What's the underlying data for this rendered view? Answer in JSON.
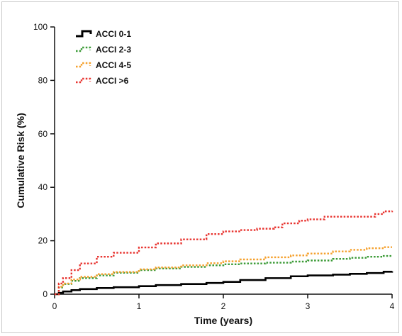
{
  "chart_data": {
    "type": "line",
    "subtype": "step",
    "xlabel": "Time (years)",
    "ylabel": "Cumulative Risk (%)",
    "xlim": [
      0,
      4
    ],
    "ylim": [
      0,
      100
    ],
    "xticks": [
      0,
      1,
      2,
      3,
      4
    ],
    "yticks": [
      0,
      20,
      40,
      60,
      80,
      100
    ],
    "grid": false,
    "legend_position": "top-left",
    "series": [
      {
        "name": "ACCI 0-1",
        "color": "#000000",
        "style": "solid",
        "x": [
          0,
          0.05,
          0.1,
          0.2,
          0.3,
          0.5,
          0.7,
          1.0,
          1.2,
          1.5,
          1.8,
          2.0,
          2.2,
          2.5,
          2.8,
          3.0,
          3.3,
          3.5,
          3.7,
          3.9,
          4.0
        ],
        "y": [
          0,
          0.5,
          1.0,
          1.5,
          1.9,
          2.3,
          2.6,
          3.0,
          3.4,
          3.8,
          4.2,
          4.6,
          5.3,
          6.0,
          6.7,
          7.0,
          7.3,
          7.6,
          7.9,
          8.4,
          8.6
        ]
      },
      {
        "name": "ACCI 2-3",
        "color": "#3a9a35",
        "style": "dotted",
        "x": [
          0,
          0.05,
          0.1,
          0.2,
          0.3,
          0.5,
          0.7,
          1.0,
          1.2,
          1.5,
          1.8,
          2.0,
          2.2,
          2.5,
          2.8,
          3.0,
          3.3,
          3.5,
          3.7,
          3.9,
          4.0
        ],
        "y": [
          0,
          2.5,
          3.8,
          5.0,
          6.0,
          7.0,
          8.0,
          9.0,
          9.6,
          10.2,
          10.8,
          11.2,
          11.5,
          11.8,
          12.2,
          12.6,
          13.2,
          13.6,
          14.0,
          14.3,
          14.3
        ]
      },
      {
        "name": "ACCI 4-5",
        "color": "#f5a02c",
        "style": "dotted",
        "x": [
          0,
          0.05,
          0.1,
          0.2,
          0.3,
          0.5,
          0.7,
          1.0,
          1.2,
          1.5,
          1.8,
          2.0,
          2.2,
          2.5,
          2.8,
          3.0,
          3.3,
          3.5,
          3.7,
          3.9,
          4.0
        ],
        "y": [
          0,
          2.8,
          4.0,
          5.5,
          6.5,
          7.5,
          8.3,
          9.3,
          10.0,
          10.8,
          11.6,
          12.3,
          13.0,
          13.8,
          14.5,
          15.2,
          16.0,
          16.6,
          17.2,
          17.6,
          17.6
        ]
      },
      {
        "name": "ACCI >6",
        "color": "#e8332f",
        "style": "dotted",
        "x": [
          0,
          0.05,
          0.1,
          0.2,
          0.3,
          0.5,
          0.7,
          1.0,
          1.2,
          1.5,
          1.8,
          2.0,
          2.2,
          2.4,
          2.6,
          2.7,
          2.9,
          3.0,
          3.2,
          3.4,
          3.6,
          3.8,
          3.9,
          4.0
        ],
        "y": [
          0,
          4.0,
          6.0,
          9.0,
          11.5,
          14.0,
          15.5,
          17.5,
          19.0,
          20.5,
          22.5,
          23.5,
          24.0,
          24.5,
          25.0,
          26.5,
          27.5,
          28.0,
          29.0,
          29.0,
          29.0,
          30.0,
          31.0,
          31.2
        ]
      }
    ]
  }
}
